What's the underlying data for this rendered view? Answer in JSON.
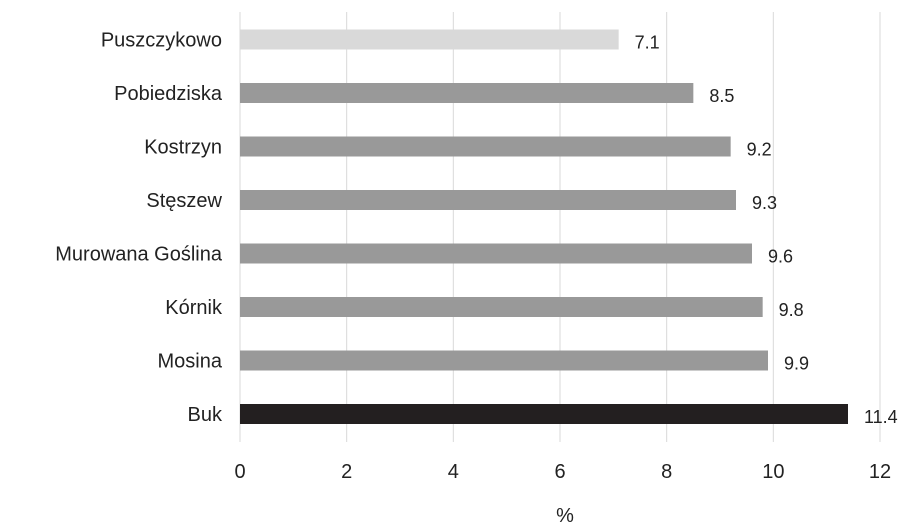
{
  "chart_data": {
    "type": "bar",
    "orientation": "horizontal",
    "categories": [
      "Puszczykowo",
      "Pobiedziska",
      "Kostrzyn",
      "Stęszew",
      "Murowana Goślina",
      "Kórnik",
      "Mosina",
      "Buk"
    ],
    "values": [
      7.1,
      8.5,
      9.2,
      9.3,
      9.6,
      9.8,
      9.9,
      11.4
    ],
    "data_labels": [
      "7.1",
      "8.5",
      "9.2",
      "9.3",
      "9.6",
      "9.8",
      "9.9",
      "11.4"
    ],
    "bar_colors": [
      "#d9d9d9",
      "#999999",
      "#999999",
      "#999999",
      "#999999",
      "#999999",
      "#999999",
      "#231f20"
    ],
    "data_label_colors": [
      "#222222",
      "#222222",
      "#222222",
      "#222222",
      "#222222",
      "#222222",
      "#222222",
      "#777777"
    ],
    "title": "",
    "xlabel": "%",
    "ylabel": "",
    "xlim": [
      0,
      12
    ],
    "x_ticks": [
      0,
      2,
      4,
      6,
      8,
      10,
      12
    ],
    "grid": "vertical",
    "legend": "none"
  }
}
